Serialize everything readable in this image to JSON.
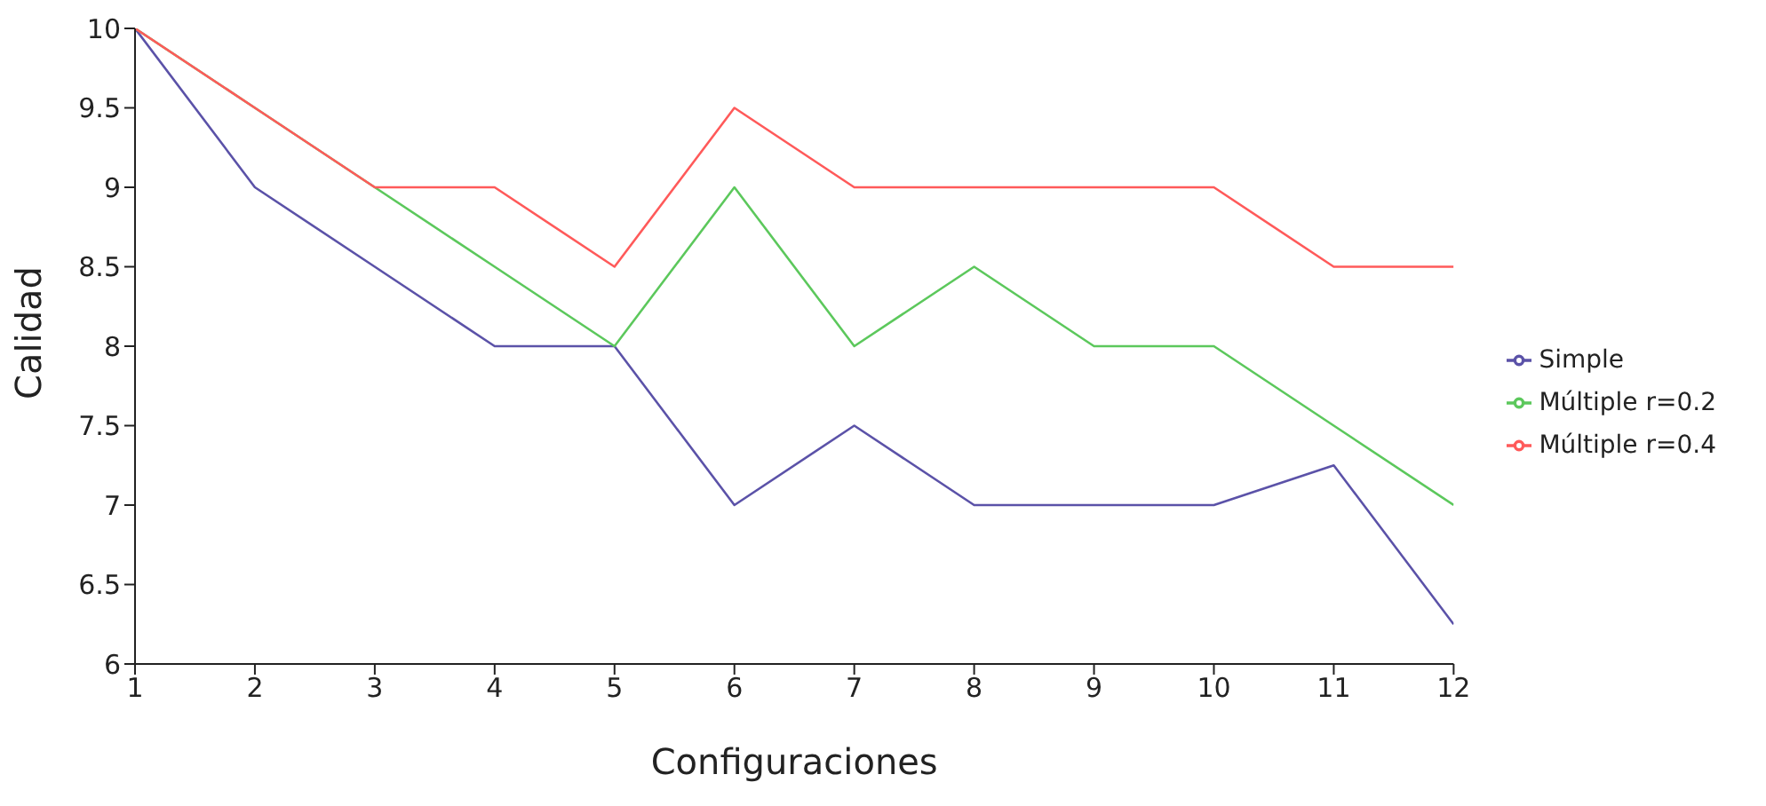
{
  "chart_data": {
    "type": "line",
    "xlabel": "Configuraciones",
    "ylabel": "Calidad",
    "x": [
      1,
      2,
      3,
      4,
      5,
      6,
      7,
      8,
      9,
      10,
      11,
      12
    ],
    "xlim": [
      1,
      12
    ],
    "xticks": [
      1,
      2,
      3,
      4,
      5,
      6,
      7,
      8,
      9,
      10,
      11,
      12
    ],
    "ylim": [
      6,
      10
    ],
    "yticks": [
      6,
      6.5,
      7,
      7.5,
      8,
      8.5,
      9,
      9.5,
      10
    ],
    "grid": false,
    "legend": "right",
    "marker": "none",
    "line_style": "solid",
    "series": [
      {
        "name": "Simple",
        "color": "#5b52a8",
        "values": [
          10,
          9,
          8.5,
          8,
          8,
          7,
          7.5,
          7,
          7,
          7,
          7.25,
          6.25
        ]
      },
      {
        "name": "Múltiple r=0.2",
        "color": "#5cc85c",
        "values": [
          10,
          9.5,
          9,
          8.5,
          8,
          9,
          8,
          8.5,
          8,
          8,
          7.5,
          7
        ]
      },
      {
        "name": "Múltiple r=0.4",
        "color": "#ff5a5a",
        "values": [
          10,
          9.5,
          9,
          9,
          8.5,
          9.5,
          9,
          9,
          9,
          9,
          8.5,
          8.5
        ]
      }
    ]
  }
}
